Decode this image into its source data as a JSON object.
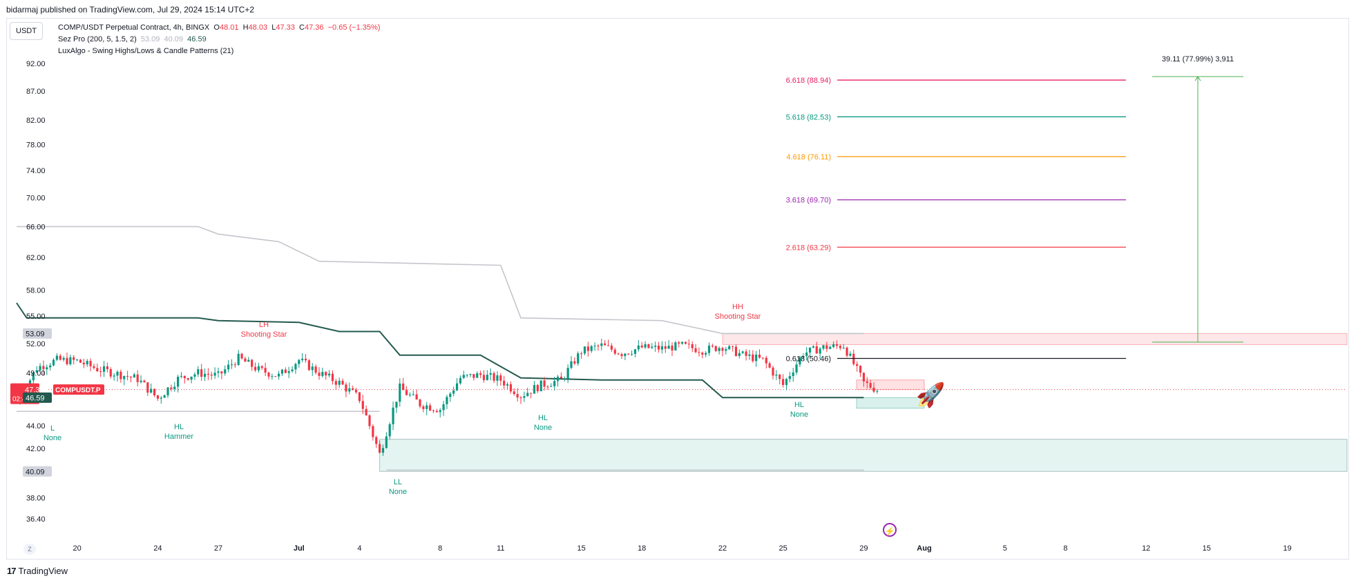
{
  "publish_info": "bidarmaj published on TradingView.com, Jul 29, 2024 15:14 UTC+2",
  "currency_button": "USDT",
  "legend": {
    "symbol": "COMP/USDT Perpetual Contract, 4h, BINGX",
    "o_label": "O",
    "o_value": "48.01",
    "h_label": "H",
    "h_value": "48.03",
    "l_label": "L",
    "l_value": "47.33",
    "c_label": "C",
    "c_value": "47.36",
    "change": "−0.65 (−1.35%)",
    "indicator1_name": "Sez Pro (200, 5, 1.5, 2)",
    "indicator1_v1": "53.09",
    "indicator1_v2": "40.09",
    "indicator1_v3": "46.59",
    "indicator2_name": "LuxAlgo - Swing Highs/Lows & Candle Patterns (21)"
  },
  "price_labels": [
    "92.00",
    "87.00",
    "82.00",
    "78.00",
    "74.00",
    "70.00",
    "66.00",
    "62.00",
    "58.00",
    "55.00",
    "52.00",
    "49.00",
    "44.00",
    "42.00",
    "38.00",
    "36.40"
  ],
  "badges": {
    "upper": "53.09",
    "current_price": "47.36",
    "countdown": "02:45:30",
    "symbol_tag": "COMPUSDT.P",
    "mid": "46.59",
    "lower": "40.09"
  },
  "x_ticks": [
    "20",
    "24",
    "27",
    "Jul",
    "4",
    "8",
    "11",
    "15",
    "18",
    "22",
    "25",
    "29",
    "Aug",
    "5",
    "8",
    "12",
    "15",
    "19"
  ],
  "fib_levels": [
    {
      "label": "6.618 (88.94)",
      "color": "#e91e63"
    },
    {
      "label": "5.618 (82.53)",
      "color": "#089981"
    },
    {
      "label": "4.618 (76.11)",
      "color": "#ff9800"
    },
    {
      "label": "3.618 (69.70)",
      "color": "#9c27b0"
    },
    {
      "label": "2.618 (63.29)",
      "color": "#f23645"
    },
    {
      "label": "0.618 (50.46)",
      "color": "#131722"
    }
  ],
  "measure_label": "39.11 (77.99%) 3,911",
  "swing_labels": [
    {
      "line1": "L",
      "line2": "None",
      "color": "#089981"
    },
    {
      "line1": "LH",
      "line2": "Shooting Star",
      "color": "#f23645"
    },
    {
      "line1": "HL",
      "line2": "Hammer",
      "color": "#089981"
    },
    {
      "line1": "LL",
      "line2": "None",
      "color": "#089981"
    },
    {
      "line1": "HL",
      "line2": "None",
      "color": "#089981"
    },
    {
      "line1": "HH",
      "line2": "Shooting Star",
      "color": "#f23645"
    },
    {
      "line1": "HL",
      "line2": "None",
      "color": "#089981"
    }
  ],
  "tradingview_logo": "TradingView",
  "z_button": "Z",
  "colors": {
    "up": "#089981",
    "down": "#f23645",
    "upper_band": "#c4c6cc",
    "lower_band": "#22594e"
  },
  "chart_data": {
    "type": "candlestick",
    "timeframe": "4h",
    "y_scale": "log",
    "ylim": [
      36.4,
      92.0
    ],
    "x_range": [
      "2024-06-17",
      "2024-08-21"
    ],
    "last_close": 47.36,
    "ohlc_last": {
      "open": 48.01,
      "high": 48.03,
      "low": 47.33,
      "close": 47.36
    },
    "price_path": [
      {
        "date": "2024-06-17",
        "price": 46.0
      },
      {
        "date": "2024-06-18",
        "price": 49.5
      },
      {
        "date": "2024-06-19",
        "price": 50.3
      },
      {
        "date": "2024-06-20",
        "price": 50.2
      },
      {
        "date": "2024-06-21",
        "price": 49.4
      },
      {
        "date": "2024-06-22",
        "price": 48.9
      },
      {
        "date": "2024-06-23",
        "price": 48.4
      },
      {
        "date": "2024-06-24",
        "price": 46.5
      },
      {
        "date": "2024-06-25",
        "price": 48.4
      },
      {
        "date": "2024-06-26",
        "price": 49.0
      },
      {
        "date": "2024-06-27",
        "price": 48.7
      },
      {
        "date": "2024-06-28",
        "price": 50.5
      },
      {
        "date": "2024-06-29",
        "price": 49.3
      },
      {
        "date": "2024-06-30",
        "price": 48.7
      },
      {
        "date": "2024-07-01",
        "price": 50.3
      },
      {
        "date": "2024-07-02",
        "price": 49.0
      },
      {
        "date": "2024-07-03",
        "price": 48.0
      },
      {
        "date": "2024-07-04",
        "price": 46.5
      },
      {
        "date": "2024-07-05",
        "price": 41.5
      },
      {
        "date": "2024-07-06",
        "price": 47.5
      },
      {
        "date": "2024-07-07",
        "price": 46.0
      },
      {
        "date": "2024-07-08",
        "price": 45.5
      },
      {
        "date": "2024-07-09",
        "price": 48.5
      },
      {
        "date": "2024-07-10",
        "price": 48.8
      },
      {
        "date": "2024-07-11",
        "price": 48.3
      },
      {
        "date": "2024-07-12",
        "price": 46.8
      },
      {
        "date": "2024-07-13",
        "price": 47.8
      },
      {
        "date": "2024-07-14",
        "price": 48.3
      },
      {
        "date": "2024-07-15",
        "price": 51.2
      },
      {
        "date": "2024-07-16",
        "price": 51.8
      },
      {
        "date": "2024-07-17",
        "price": 51.0
      },
      {
        "date": "2024-07-18",
        "price": 51.6
      },
      {
        "date": "2024-07-19",
        "price": 51.5
      },
      {
        "date": "2024-07-20",
        "price": 51.8
      },
      {
        "date": "2024-07-21",
        "price": 51.3
      },
      {
        "date": "2024-07-22",
        "price": 51.7
      },
      {
        "date": "2024-07-23",
        "price": 50.8
      },
      {
        "date": "2024-07-24",
        "price": 50.3
      },
      {
        "date": "2024-07-25",
        "price": 47.8
      },
      {
        "date": "2024-07-26",
        "price": 51.0
      },
      {
        "date": "2024-07-27",
        "price": 51.6
      },
      {
        "date": "2024-07-28",
        "price": 51.8
      },
      {
        "date": "2024-07-29",
        "price": 48.0
      },
      {
        "date": "2024-07-29T16:00",
        "price": 47.36
      }
    ],
    "upper_band": [
      {
        "date": "2024-06-17",
        "value": 66.0
      },
      {
        "date": "2024-06-26",
        "value": 66.0
      },
      {
        "date": "2024-06-27",
        "value": 65.0
      },
      {
        "date": "2024-06-30",
        "value": 64.0
      },
      {
        "date": "2024-07-02",
        "value": 61.5
      },
      {
        "date": "2024-07-11",
        "value": 61.0
      },
      {
        "date": "2024-07-12",
        "value": 54.8
      },
      {
        "date": "2024-07-19",
        "value": 54.5
      },
      {
        "date": "2024-07-22",
        "value": 53.09
      },
      {
        "date": "2024-07-29",
        "value": 53.09
      }
    ],
    "lower_band": [
      {
        "date": "2024-06-17",
        "value": 56.5
      },
      {
        "date": "2024-06-17T12:00",
        "value": 54.8
      },
      {
        "date": "2024-06-26",
        "value": 54.8
      },
      {
        "date": "2024-06-27",
        "value": 54.5
      },
      {
        "date": "2024-07-01",
        "value": 54.3
      },
      {
        "date": "2024-07-03",
        "value": 53.3
      },
      {
        "date": "2024-07-05",
        "value": 53.3
      },
      {
        "date": "2024-07-06",
        "value": 50.8
      },
      {
        "date": "2024-07-10",
        "value": 50.8
      },
      {
        "date": "2024-07-12",
        "value": 48.5
      },
      {
        "date": "2024-07-16",
        "value": 48.3
      },
      {
        "date": "2024-07-21",
        "value": 48.3
      },
      {
        "date": "2024-07-22",
        "value": 46.59
      },
      {
        "date": "2024-07-29",
        "value": 46.59
      }
    ],
    "fibonacci": [
      {
        "ratio": "6.618",
        "value": 88.94
      },
      {
        "ratio": "5.618",
        "value": 82.53
      },
      {
        "ratio": "4.618",
        "value": 76.11
      },
      {
        "ratio": "3.618",
        "value": 69.7
      },
      {
        "ratio": "2.618",
        "value": 63.29
      },
      {
        "ratio": "0.618",
        "value": 50.46
      }
    ],
    "measure": {
      "from": 50.46,
      "to": 89.57,
      "change": 39.11,
      "percent": 77.99,
      "ticks": 3911
    },
    "zones": [
      {
        "kind": "supply",
        "from_date": "2024-07-22",
        "top": 53.09,
        "bottom": 51.9
      },
      {
        "kind": "demand",
        "from_date": "2024-07-05",
        "top": 42.8,
        "bottom": 40.09
      }
    ],
    "swings": [
      {
        "date": "2024-06-17",
        "label": "L None",
        "price": 45.3
      },
      {
        "date": "2024-06-27",
        "label": "LH Shooting Star",
        "price": 50.8
      },
      {
        "date": "2024-06-24",
        "label": "HL Hammer",
        "price": 46.5
      },
      {
        "date": "2024-07-05",
        "label": "LL None",
        "price": 40.2
      },
      {
        "date": "2024-07-12",
        "label": "HL None",
        "price": 46.8
      },
      {
        "date": "2024-07-22",
        "label": "HH Shooting Star",
        "price": 53.1
      },
      {
        "date": "2024-07-25",
        "label": "HL None",
        "price": 47.6
      }
    ]
  }
}
